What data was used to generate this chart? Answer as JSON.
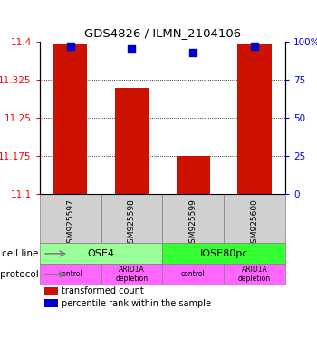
{
  "title": "GDS4826 / ILMN_2104106",
  "samples": [
    "GSM925597",
    "GSM925598",
    "GSM925599",
    "GSM925600"
  ],
  "bar_values": [
    11.395,
    11.31,
    11.175,
    11.395
  ],
  "percentile_values": [
    97,
    95,
    93,
    97
  ],
  "ylim_left": [
    11.1,
    11.4
  ],
  "ylim_right": [
    0,
    100
  ],
  "yticks_left": [
    11.1,
    11.175,
    11.25,
    11.325,
    11.4
  ],
  "ytick_labels_left": [
    "11.1",
    "11.175",
    "11.25",
    "11.325",
    "11.4"
  ],
  "yticks_right": [
    0,
    25,
    50,
    75,
    100
  ],
  "ytick_labels_right": [
    "0",
    "25",
    "50",
    "75",
    "100%"
  ],
  "bar_color": "#cc1100",
  "dot_color": "#0000cc",
  "grid_color": "#000000",
  "cell_line_groups": [
    {
      "label": "OSE4",
      "color": "#99ff99",
      "span": [
        0,
        2
      ]
    },
    {
      "label": "IOSE80pc",
      "color": "#33ff33",
      "span": [
        2,
        4
      ]
    }
  ],
  "protocol_groups": [
    {
      "label": "control",
      "color": "#ff66ff",
      "span": [
        0,
        1
      ]
    },
    {
      "label": "ARID1A\ndepletion",
      "color": "#ff66ff",
      "span": [
        1,
        2
      ]
    },
    {
      "label": "control",
      "color": "#ff66ff",
      "span": [
        2,
        3
      ]
    },
    {
      "label": "ARID1A\ndepletion",
      "color": "#ff66ff",
      "span": [
        3,
        4
      ]
    }
  ],
  "left_label_cell": "cell line",
  "left_label_protocol": "protocol",
  "legend_red_label": "transformed count",
  "legend_blue_label": "percentile rank within the sample",
  "bar_width": 0.55,
  "dot_size": 30,
  "fig_width": 3.5,
  "fig_height": 3.84,
  "dpi": 100
}
